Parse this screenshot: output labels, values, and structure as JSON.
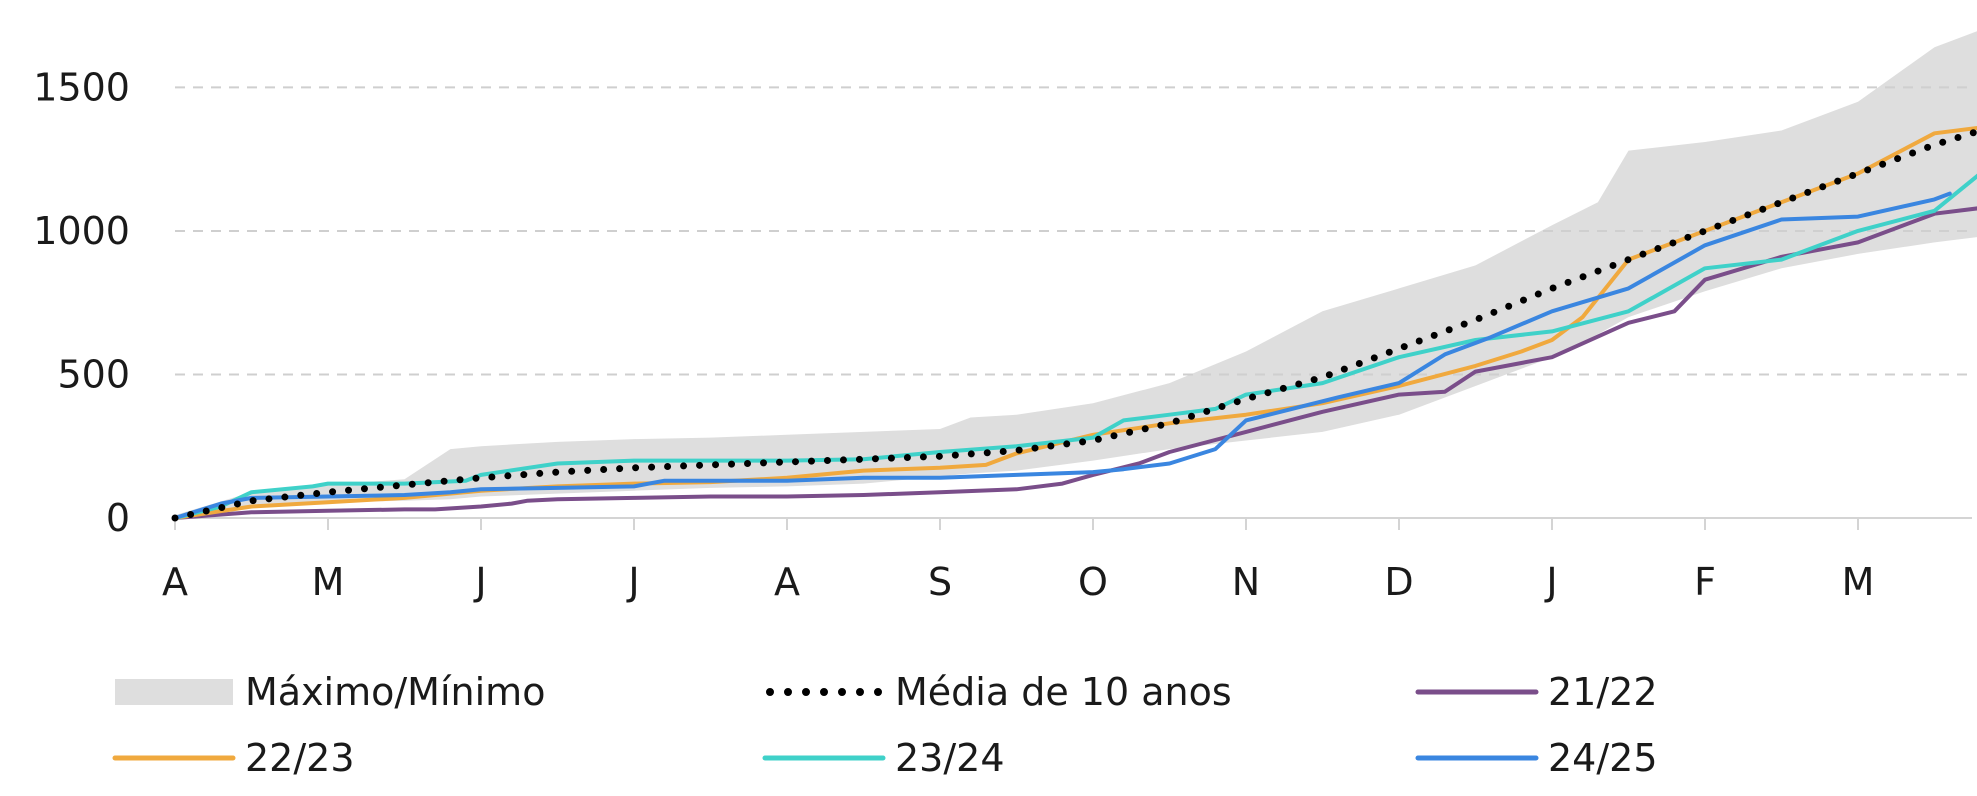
{
  "chart_data": {
    "type": "line",
    "title": "",
    "xlabel": "",
    "ylabel": "",
    "x_ticks": [
      "A",
      "M",
      "J",
      "J",
      "A",
      "S",
      "O",
      "N",
      "D",
      "J",
      "F",
      "M"
    ],
    "y_ticks": [
      0,
      500,
      1000,
      1500
    ],
    "xlim": [
      0,
      11.8
    ],
    "ylim": [
      0,
      1700
    ],
    "grid": "horizontal dashed",
    "legend_position": "bottom",
    "band": {
      "name": "Máximo/Mínimo",
      "color": "#dedede",
      "x": [
        0,
        0.5,
        1,
        1.5,
        1.8,
        2,
        2.5,
        3,
        3.5,
        4,
        4.5,
        5,
        5.2,
        5.5,
        6,
        6.5,
        7,
        7.5,
        8,
        8.5,
        9,
        9.3,
        9.5,
        10,
        10.5,
        11,
        11.5,
        11.8
      ],
      "max": [
        10,
        90,
        115,
        135,
        240,
        250,
        265,
        275,
        280,
        290,
        300,
        310,
        350,
        360,
        400,
        470,
        580,
        720,
        800,
        880,
        1020,
        1100,
        1280,
        1310,
        1350,
        1450,
        1640,
        1700
      ],
      "min": [
        0,
        45,
        55,
        60,
        65,
        75,
        85,
        95,
        105,
        110,
        120,
        145,
        155,
        165,
        200,
        240,
        270,
        300,
        360,
        460,
        560,
        640,
        700,
        790,
        870,
        920,
        960,
        980
      ]
    },
    "series": [
      {
        "name": "Média de 10 anos",
        "color": "#000000",
        "style": "dotted",
        "x": [
          0,
          0.5,
          1,
          1.5,
          2,
          2.5,
          3,
          3.5,
          4,
          4.5,
          5,
          5.5,
          6,
          6.5,
          7,
          7.5,
          8,
          8.5,
          9,
          9.5,
          10,
          10.5,
          11,
          11.5,
          11.8
        ],
        "y": [
          0,
          60,
          90,
          115,
          140,
          160,
          175,
          185,
          195,
          205,
          215,
          235,
          270,
          330,
          415,
          490,
          590,
          690,
          800,
          900,
          1000,
          1100,
          1200,
          1300,
          1350
        ]
      },
      {
        "name": "21/22",
        "color": "#7a4e8a",
        "style": "solid",
        "x": [
          0,
          0.5,
          1,
          1.5,
          1.7,
          2,
          2.2,
          2.3,
          2.5,
          3,
          3.5,
          4,
          4.5,
          5,
          5.5,
          5.8,
          6,
          6.3,
          6.5,
          7,
          7.5,
          8,
          8.3,
          8.5,
          9,
          9.5,
          9.8,
          10,
          10.5,
          11,
          11.5,
          11.8
        ],
        "y": [
          0,
          20,
          25,
          30,
          30,
          40,
          50,
          60,
          65,
          70,
          75,
          75,
          80,
          90,
          100,
          120,
          150,
          190,
          230,
          300,
          370,
          430,
          440,
          510,
          560,
          680,
          720,
          830,
          910,
          960,
          1060,
          1080
        ]
      },
      {
        "name": "22/23",
        "color": "#f0a93e",
        "style": "solid",
        "x": [
          0,
          0.5,
          1,
          1.5,
          2,
          2.5,
          3,
          3.5,
          4,
          4.5,
          5,
          5.3,
          5.5,
          6,
          6.5,
          7,
          7.5,
          8,
          8.5,
          8.8,
          9,
          9.2,
          9.5,
          10,
          10.5,
          11,
          11.5,
          11.8
        ],
        "y": [
          0,
          40,
          55,
          70,
          95,
          110,
          120,
          125,
          140,
          165,
          175,
          185,
          225,
          290,
          330,
          360,
          400,
          460,
          530,
          580,
          620,
          700,
          900,
          1000,
          1100,
          1200,
          1340,
          1360
        ]
      },
      {
        "name": "23/24",
        "color": "#3fd1c9",
        "style": "solid",
        "x": [
          0,
          0.3,
          0.5,
          0.9,
          1,
          1.5,
          1.9,
          2,
          2.5,
          3,
          3.5,
          4,
          4.5,
          5,
          5.5,
          6,
          6.2,
          6.5,
          6.8,
          7,
          7.5,
          8,
          8.5,
          9,
          9.5,
          10,
          10.5,
          11,
          11.5,
          11.8
        ],
        "y": [
          0,
          40,
          90,
          110,
          120,
          120,
          130,
          150,
          190,
          200,
          200,
          200,
          205,
          230,
          250,
          280,
          340,
          360,
          380,
          430,
          470,
          560,
          620,
          650,
          720,
          870,
          900,
          1000,
          1070,
          1200
        ]
      },
      {
        "name": "24/25",
        "color": "#3a86e0",
        "style": "solid",
        "x": [
          0,
          0.3,
          0.5,
          1,
          1.5,
          1.8,
          2,
          2.5,
          3,
          3.2,
          3.5,
          4,
          4.5,
          5,
          5.5,
          6,
          6.2,
          6.5,
          6.8,
          7,
          7.3,
          7.6,
          8,
          8.3,
          8.6,
          9,
          9.5,
          10,
          10.5,
          11,
          11.5,
          11.6
        ],
        "y": [
          0,
          50,
          70,
          75,
          80,
          90,
          100,
          105,
          110,
          130,
          130,
          130,
          140,
          140,
          150,
          160,
          170,
          190,
          240,
          340,
          380,
          420,
          470,
          570,
          630,
          720,
          800,
          950,
          1040,
          1050,
          1110,
          1130
        ]
      }
    ]
  }
}
